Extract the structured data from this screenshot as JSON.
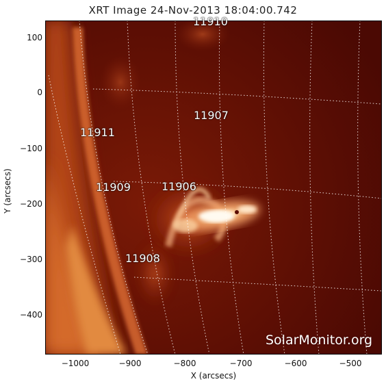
{
  "title": "XRT Image 24-Nov-2013 18:04:00.742",
  "axes": {
    "xlabel": "X (arcsecs)",
    "ylabel": "Y (arcsecs)",
    "xticks": [
      "−1000",
      "−900",
      "−800",
      "−700",
      "−600",
      "−500"
    ],
    "yticks": [
      "100",
      "0",
      "−100",
      "−200",
      "−300",
      "−400"
    ]
  },
  "active_regions": [
    {
      "id": "11910",
      "label": "11910"
    },
    {
      "id": "11907",
      "label": "11907"
    },
    {
      "id": "11911",
      "label": "11911"
    },
    {
      "id": "11909",
      "label": "11909"
    },
    {
      "id": "11906",
      "label": "11906"
    },
    {
      "id": "11908",
      "label": "11908"
    }
  ],
  "watermark": "SolarMonitor.org",
  "colors": {
    "background": "#5a0c04",
    "limb": "#c24a14",
    "flare": "#fff2de"
  }
}
